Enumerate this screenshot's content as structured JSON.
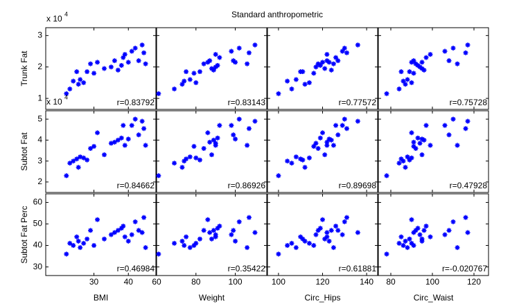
{
  "chart_data": {
    "type": "scatter",
    "title": "Standard anthropometric",
    "color": "#0000ff",
    "columns": [
      {
        "label": "BMI",
        "xlim": [
          16,
          48
        ],
        "xticks": [
          30,
          40
        ],
        "x": [
          22,
          23,
          24,
          25,
          25.5,
          26,
          27,
          28,
          29,
          30,
          31,
          33,
          35,
          36,
          37,
          38,
          38.5,
          39,
          40,
          41,
          42,
          43,
          44,
          44.5,
          45
        ]
      },
      {
        "label": "Weight",
        "xlim": [
          60,
          116
        ],
        "xticks": [
          60,
          80,
          100
        ],
        "x": [
          61,
          69,
          74,
          75,
          73,
          77,
          80,
          82,
          84,
          79,
          86,
          88,
          90,
          87,
          89,
          91,
          92,
          90,
          100,
          98,
          102,
          99,
          110,
          107,
          106
        ]
      },
      {
        "label": "Circ_Hips",
        "xlim": [
          95,
          145
        ],
        "xticks": [
          100,
          120,
          140
        ],
        "x": [
          100,
          106,
          104,
          110,
          112,
          108,
          114,
          111,
          118,
          116,
          120,
          121,
          117,
          122,
          124,
          119,
          126,
          122,
          123,
          129,
          130,
          127,
          136,
          131,
          125
        ]
      },
      {
        "label": "Circ_Waist",
        "xlim": [
          74,
          127
        ],
        "xticks": [
          80,
          100,
          120
        ],
        "x": [
          78,
          84,
          86,
          85,
          87,
          88,
          90,
          89,
          92,
          91,
          90,
          95,
          94,
          91,
          96,
          93,
          97,
          99,
          95,
          106,
          110,
          108,
          117,
          116,
          112
        ]
      }
    ],
    "rows": [
      {
        "label": "Trunk Fat",
        "multiplier": {
          "base": "x 10",
          "exponent": "4"
        },
        "ylim": [
          0.65,
          3.25
        ],
        "yticks": [
          1,
          2,
          3
        ],
        "y": [
          1.15,
          1.3,
          1.55,
          1.85,
          1.45,
          1.6,
          1.5,
          1.85,
          2.1,
          1.8,
          2.15,
          1.95,
          2.0,
          2.2,
          1.9,
          2.05,
          2.3,
          2.4,
          2.15,
          2.5,
          2.6,
          2.2,
          2.7,
          2.45,
          2.1
        ]
      },
      {
        "label": "Subtot Fat",
        "multiplier": {
          "base": "x 10",
          "exponent": "4"
        },
        "ylim": [
          1.5,
          5.4
        ],
        "yticks": [
          2,
          3,
          4,
          5
        ],
        "y": [
          2.3,
          2.9,
          3.0,
          3.1,
          2.7,
          3.2,
          3.15,
          3.05,
          3.6,
          3.7,
          4.35,
          3.3,
          3.85,
          3.9,
          4.0,
          4.1,
          4.7,
          3.75,
          4.05,
          4.7,
          5.0,
          4.25,
          4.9,
          4.55,
          3.75
        ]
      },
      {
        "label": "Subtot Fat Perc",
        "ylim": [
          26,
          64
        ],
        "yticks": [
          30,
          40,
          50,
          60
        ],
        "y": [
          36,
          41,
          40,
          44,
          42,
          39,
          41,
          43,
          47,
          40,
          52,
          43,
          45,
          46,
          47,
          48,
          49,
          44,
          42,
          45,
          51,
          47,
          46,
          53,
          39
        ]
      }
    ],
    "annotations": [
      [
        "r=0.83792",
        "r=0.83143",
        "r=0.77572",
        "r=0.75728"
      ],
      [
        "r=0.84662",
        "r=0.86926",
        "r=0.89698",
        "r=0.47928"
      ],
      [
        "r=0.46984",
        "r=0.35422",
        "r=0.61881",
        "r=-0.020767"
      ]
    ]
  }
}
